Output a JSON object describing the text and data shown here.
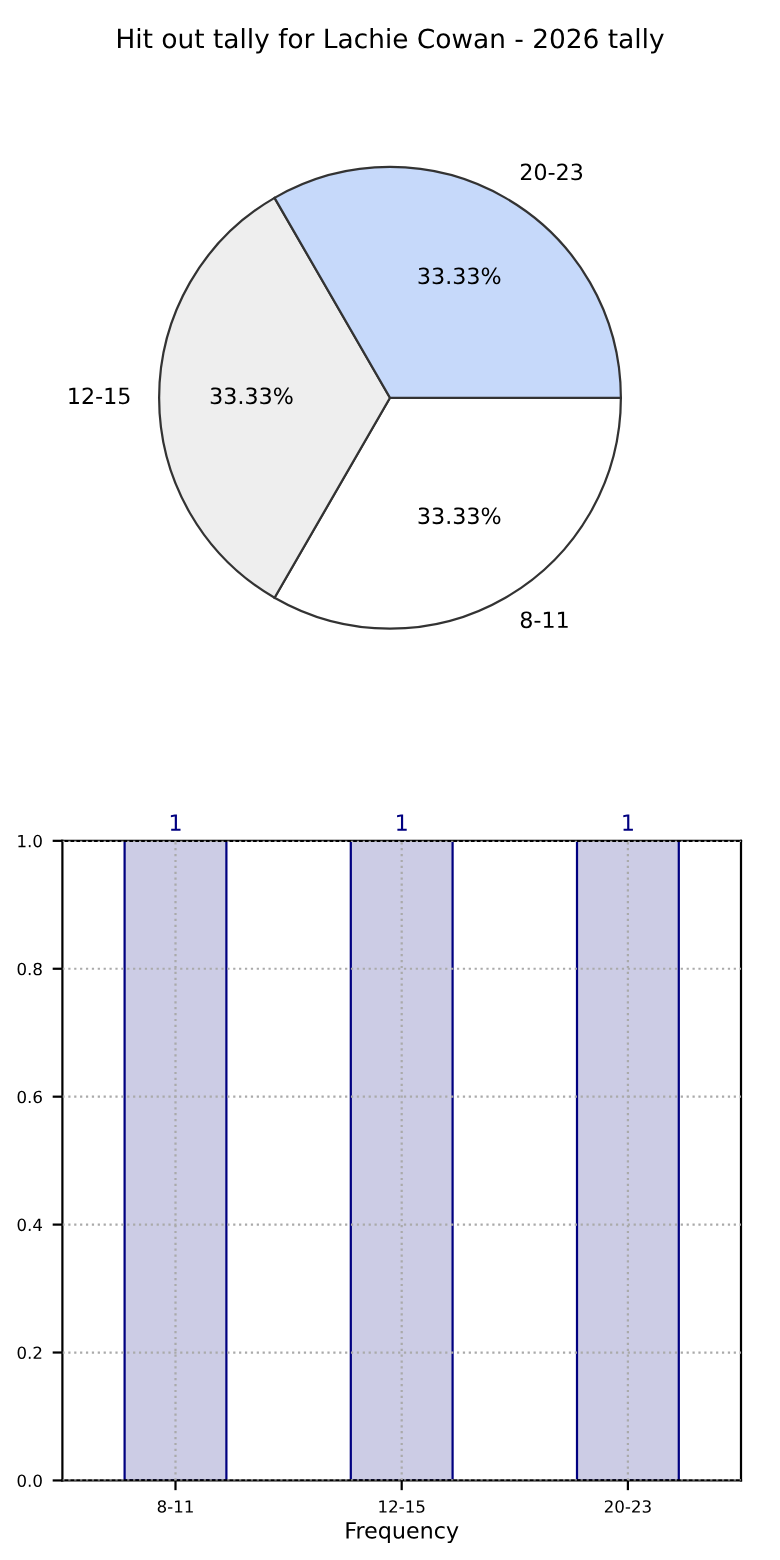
{
  "chart_data": [
    {
      "type": "pie",
      "title": "Hit out tally for Lachie Cowan - 2026 tally",
      "categories": [
        "8-11",
        "12-15",
        "20-23"
      ],
      "values": [
        33.33,
        33.33,
        33.33
      ],
      "value_labels": [
        "33.33%",
        "33.33%",
        "33.33%"
      ],
      "colors": [
        "#ffffff",
        "#eeeeee",
        "#c6d9fa"
      ]
    },
    {
      "type": "bar",
      "xlabel": "Frequency",
      "categories": [
        "8-11",
        "12-15",
        "20-23"
      ],
      "series": [
        {
          "color": "#ccccE5",
          "values": [
            1,
            1,
            1
          ]
        }
      ],
      "ylim": [
        0,
        1
      ],
      "yticks": [
        {
          "value": 0,
          "label": "0.0"
        },
        {
          "value": 0.2,
          "label": "0.2"
        },
        {
          "value": 0.4,
          "label": "0.4"
        },
        {
          "value": 0.6,
          "label": "0.6"
        },
        {
          "value": 0.8,
          "label": "0.8"
        },
        {
          "value": 1,
          "label": "1.0"
        }
      ],
      "grid": true,
      "data_labels": true
    }
  ]
}
